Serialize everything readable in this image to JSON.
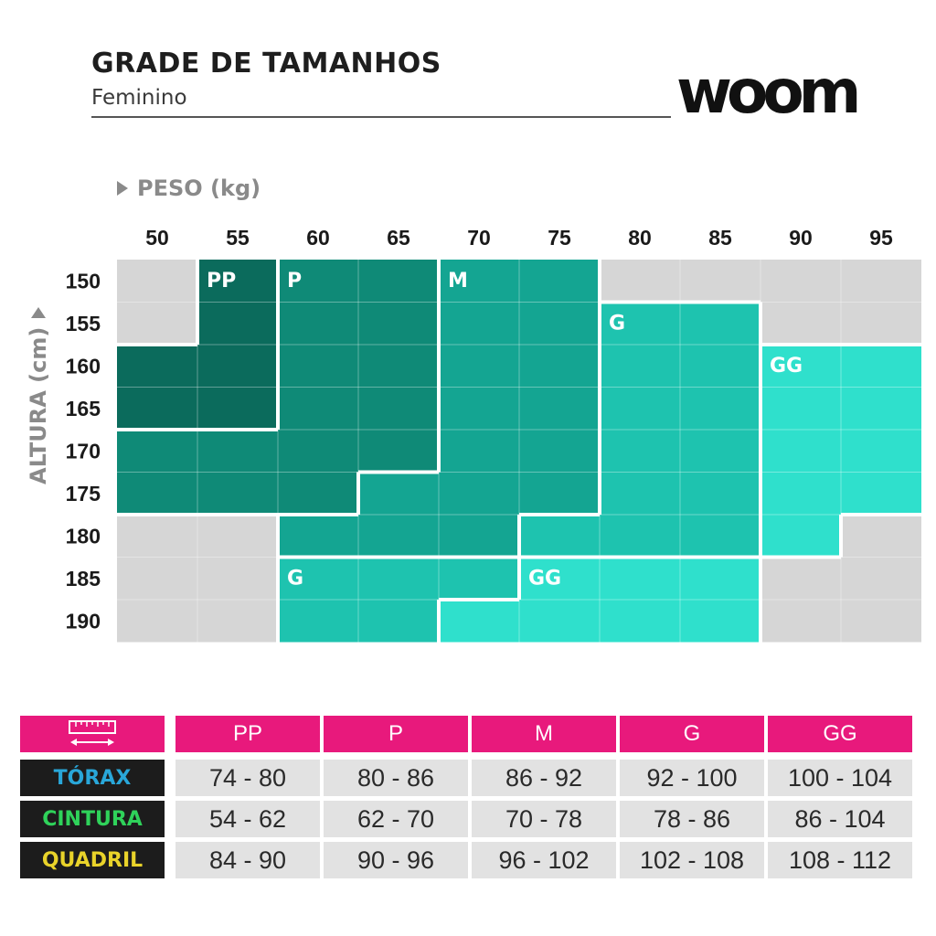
{
  "header": {
    "title": "GRADE DE TAMANHOS",
    "subtitle": "Feminino",
    "logo": "woom"
  },
  "chart_data": {
    "type": "heatmap",
    "xlabel": "PESO (kg)",
    "ylabel": "ALTURA (cm)",
    "x": [
      50,
      55,
      60,
      65,
      70,
      75,
      80,
      85,
      90,
      95
    ],
    "y": [
      150,
      155,
      160,
      165,
      170,
      175,
      180,
      185,
      190
    ],
    "zones": [
      {
        "label": "PP",
        "color": "#0b6b5c",
        "cells": [
          [
            55,
            150
          ],
          [
            55,
            155
          ],
          [
            50,
            160
          ],
          [
            55,
            160
          ],
          [
            50,
            165
          ],
          [
            55,
            165
          ]
        ]
      },
      {
        "label": "P",
        "color": "#0f8a77",
        "cells": [
          [
            60,
            150
          ],
          [
            65,
            150
          ],
          [
            60,
            155
          ],
          [
            65,
            155
          ],
          [
            60,
            160
          ],
          [
            65,
            160
          ],
          [
            60,
            165
          ],
          [
            65,
            165
          ],
          [
            50,
            170
          ],
          [
            55,
            170
          ],
          [
            60,
            170
          ],
          [
            65,
            170
          ],
          [
            50,
            175
          ],
          [
            55,
            175
          ],
          [
            60,
            175
          ]
        ]
      },
      {
        "label": "M",
        "color": "#14a592",
        "cells": [
          [
            70,
            150
          ],
          [
            75,
            150
          ],
          [
            70,
            155
          ],
          [
            75,
            155
          ],
          [
            70,
            160
          ],
          [
            75,
            160
          ],
          [
            70,
            165
          ],
          [
            75,
            165
          ],
          [
            70,
            170
          ],
          [
            75,
            170
          ],
          [
            65,
            175
          ],
          [
            70,
            175
          ],
          [
            75,
            175
          ],
          [
            60,
            180
          ],
          [
            65,
            180
          ],
          [
            70,
            180
          ]
        ]
      },
      {
        "label": "G",
        "color": "#1ec3af",
        "cells": [
          [
            80,
            155
          ],
          [
            85,
            155
          ],
          [
            80,
            160
          ],
          [
            85,
            160
          ],
          [
            80,
            165
          ],
          [
            85,
            165
          ],
          [
            80,
            170
          ],
          [
            85,
            170
          ],
          [
            80,
            175
          ],
          [
            85,
            175
          ],
          [
            75,
            180
          ],
          [
            80,
            180
          ],
          [
            85,
            180
          ]
        ]
      },
      {
        "label": "G",
        "color": "#1ec3af",
        "cells": [
          [
            60,
            185
          ],
          [
            65,
            185
          ],
          [
            70,
            185
          ],
          [
            60,
            190
          ],
          [
            65,
            190
          ]
        ]
      },
      {
        "label": "GG",
        "color": "#2fe0cc",
        "cells": [
          [
            90,
            160
          ],
          [
            95,
            160
          ],
          [
            90,
            165
          ],
          [
            95,
            165
          ],
          [
            90,
            170
          ],
          [
            95,
            170
          ],
          [
            90,
            175
          ],
          [
            95,
            175
          ],
          [
            90,
            180
          ]
        ]
      },
      {
        "label": "GG",
        "color": "#2fe0cc",
        "cells": [
          [
            75,
            185
          ],
          [
            80,
            185
          ],
          [
            85,
            185
          ],
          [
            70,
            190
          ],
          [
            75,
            190
          ],
          [
            80,
            190
          ],
          [
            85,
            190
          ]
        ]
      }
    ],
    "empty_color": "#d6d6d6"
  },
  "measurements": {
    "icon": "tape-measure-icon",
    "sizes": [
      "PP",
      "P",
      "M",
      "G",
      "GG"
    ],
    "rows": [
      {
        "label": "TÓRAX",
        "color": "#29a7d9",
        "values": [
          "74 - 80",
          "80 - 86",
          "86 - 92",
          "92 - 100",
          "100  - 104"
        ]
      },
      {
        "label": "CINTURA",
        "color": "#2fd25a",
        "values": [
          "54 - 62",
          "62 - 70",
          "70 - 78",
          "78 - 86",
          "86 - 104"
        ]
      },
      {
        "label": "QUADRIL",
        "color": "#e9d32a",
        "values": [
          "84 - 90",
          "90 - 96",
          "96 - 102",
          "102 - 108",
          "108  - 112"
        ]
      }
    ]
  }
}
